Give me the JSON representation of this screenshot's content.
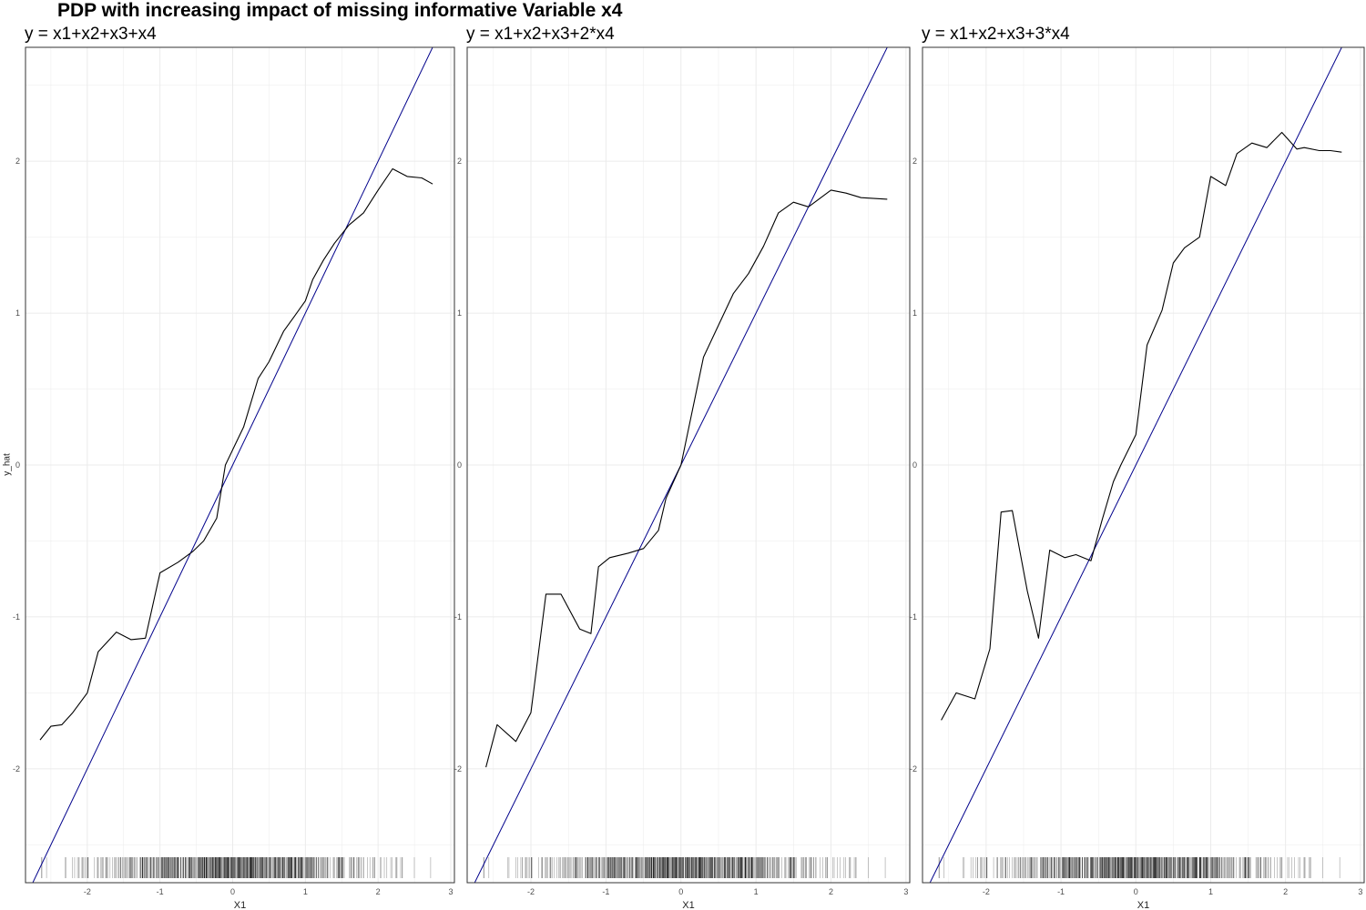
{
  "title": "PDP with increasing impact of missing informative Variable x4",
  "ylabel": "y_hat",
  "colors": {
    "pdp_line": "#000000",
    "reference_line": "#00008B",
    "grid": "#ebebeb",
    "rug": "#000000"
  },
  "chart_data": [
    {
      "type": "line",
      "title": "y = x1+x2+x3+x4",
      "xlabel": "X1",
      "ylabel": "y_hat",
      "xlim": [
        -2.85,
        3.05
      ],
      "ylim": [
        -2.75,
        2.75
      ],
      "xticks": [
        "-2",
        "-1",
        "0",
        "1",
        "2",
        "3"
      ],
      "yticks": [
        "-2",
        "-1",
        "0",
        "1",
        "2"
      ],
      "grid": true,
      "reference_line": {
        "slope": 1,
        "intercept": 0
      },
      "x": [
        -2.65,
        -2.5,
        -2.35,
        -2.2,
        -2.0,
        -1.85,
        -1.6,
        -1.4,
        -1.2,
        -1.0,
        -0.75,
        -0.55,
        -0.4,
        -0.22,
        -0.1,
        0.0,
        0.15,
        0.35,
        0.5,
        0.7,
        0.85,
        1.0,
        1.1,
        1.25,
        1.4,
        1.6,
        1.8,
        2.0,
        2.2,
        2.4,
        2.6,
        2.75
      ],
      "values": [
        -1.81,
        -1.72,
        -1.71,
        -1.63,
        -1.5,
        -1.23,
        -1.1,
        -1.15,
        -1.14,
        -0.71,
        -0.64,
        -0.57,
        -0.5,
        -0.35,
        0.0,
        0.1,
        0.25,
        0.57,
        0.68,
        0.88,
        0.98,
        1.08,
        1.22,
        1.35,
        1.46,
        1.58,
        1.66,
        1.81,
        1.95,
        1.9,
        1.89,
        1.85
      ]
    },
    {
      "type": "line",
      "title": "y = x1+x2+x3+2*x4",
      "xlabel": "X1",
      "ylabel": "",
      "xlim": [
        -2.85,
        3.05
      ],
      "ylim": [
        -2.75,
        2.75
      ],
      "xticks": [
        "-2",
        "-1",
        "0",
        "1",
        "2",
        "3"
      ],
      "yticks": [
        "-2",
        "-1",
        "0",
        "1",
        "2"
      ],
      "grid": true,
      "reference_line": {
        "slope": 1,
        "intercept": 0
      },
      "x": [
        -2.6,
        -2.45,
        -2.2,
        -2.0,
        -1.8,
        -1.6,
        -1.35,
        -1.2,
        -1.1,
        -0.95,
        -0.7,
        -0.5,
        -0.3,
        -0.2,
        0.0,
        0.3,
        0.7,
        0.9,
        1.1,
        1.3,
        1.5,
        1.7,
        2.0,
        2.2,
        2.4,
        2.75
      ],
      "values": [
        -1.99,
        -1.71,
        -1.82,
        -1.63,
        -0.85,
        -0.85,
        -1.08,
        -1.11,
        -0.67,
        -0.61,
        -0.58,
        -0.55,
        -0.43,
        -0.22,
        0.0,
        0.71,
        1.13,
        1.26,
        1.44,
        1.66,
        1.73,
        1.7,
        1.81,
        1.79,
        1.76,
        1.75
      ]
    },
    {
      "type": "line",
      "title": "y = x1+x2+x3+3*x4",
      "xlabel": "X1",
      "ylabel": "",
      "xlim": [
        -2.85,
        3.05
      ],
      "ylim": [
        -2.75,
        2.75
      ],
      "xticks": [
        "-2",
        "-1",
        "0",
        "1",
        "2",
        "3"
      ],
      "yticks": [
        "-2",
        "-1",
        "0",
        "1",
        "2"
      ],
      "grid": true,
      "reference_line": {
        "slope": 1,
        "intercept": 0
      },
      "x": [
        -2.6,
        -2.4,
        -2.15,
        -1.95,
        -1.8,
        -1.65,
        -1.45,
        -1.3,
        -1.15,
        -0.95,
        -0.8,
        -0.6,
        -0.45,
        -0.3,
        -0.2,
        0.0,
        0.15,
        0.35,
        0.5,
        0.65,
        0.85,
        1.0,
        1.2,
        1.35,
        1.55,
        1.75,
        1.95,
        2.15,
        2.25,
        2.45,
        2.6,
        2.75
      ],
      "values": [
        -1.68,
        -1.5,
        -1.54,
        -1.21,
        -0.31,
        -0.3,
        -0.83,
        -1.14,
        -0.56,
        -0.61,
        -0.59,
        -0.63,
        -0.36,
        -0.11,
        0.0,
        0.2,
        0.79,
        1.02,
        1.33,
        1.43,
        1.5,
        1.9,
        1.84,
        2.05,
        2.12,
        2.09,
        2.19,
        2.08,
        2.09,
        2.07,
        2.07,
        2.06
      ]
    }
  ]
}
